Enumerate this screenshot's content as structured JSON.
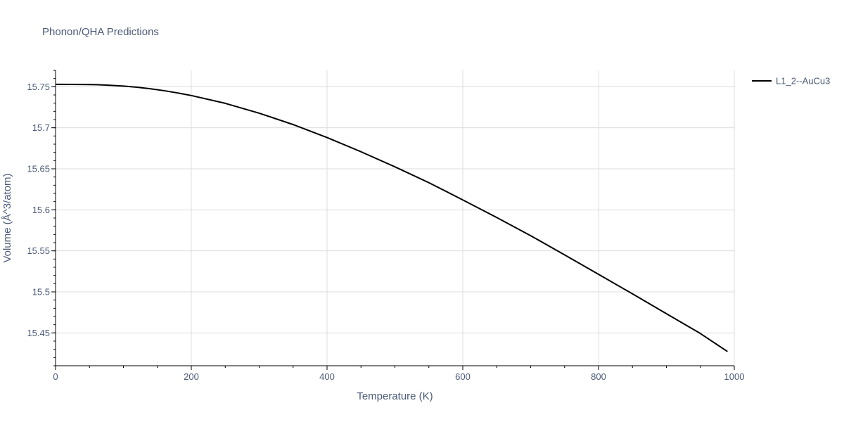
{
  "chart_data": {
    "type": "line",
    "title": "Phonon/QHA Predictions",
    "xlabel": "Temperature (K)",
    "ylabel": "Volume (Å^3/atom)",
    "xlim": [
      0,
      1000
    ],
    "ylim": [
      15.41,
      15.77
    ],
    "x_ticks": [
      0,
      200,
      400,
      600,
      800,
      1000
    ],
    "x_tick_labels": [
      "0",
      "200",
      "400",
      "600",
      "800",
      "1000"
    ],
    "y_ticks": [
      15.45,
      15.5,
      15.55,
      15.6,
      15.65,
      15.7,
      15.75
    ],
    "y_tick_labels": [
      "15.45",
      "15.5",
      "15.55",
      "15.6",
      "15.65",
      "15.7",
      "15.75"
    ],
    "grid": true,
    "legend_position": "top-right",
    "series": [
      {
        "name": "L1_2--AuCu3",
        "color": "#000000",
        "x": [
          0,
          20,
          40,
          60,
          80,
          100,
          120,
          140,
          160,
          180,
          200,
          250,
          300,
          350,
          400,
          450,
          500,
          550,
          600,
          650,
          700,
          750,
          800,
          850,
          900,
          950,
          990
        ],
        "y": [
          15.753,
          15.7529,
          15.7528,
          15.7525,
          15.7518,
          15.7508,
          15.7494,
          15.7475,
          15.7452,
          15.7424,
          15.7393,
          15.7298,
          15.7178,
          15.7039,
          15.6881,
          15.6708,
          15.6524,
          15.6331,
          15.6121,
          15.5906,
          15.5685,
          15.5451,
          15.5214,
          15.4976,
          15.4734,
          15.4493,
          15.4273
        ]
      }
    ]
  }
}
